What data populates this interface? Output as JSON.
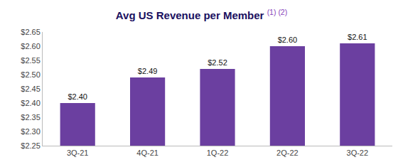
{
  "chart_data": {
    "type": "bar",
    "title": "Avg US Revenue per Member",
    "annotations": [
      "(1) (2)"
    ],
    "categories": [
      "3Q-21",
      "4Q-21",
      "1Q-22",
      "2Q-22",
      "3Q-22"
    ],
    "values": [
      2.4,
      2.49,
      2.52,
      2.6,
      2.61
    ],
    "value_labels": [
      "$2.40",
      "$2.49",
      "$2.52",
      "$2.60",
      "$2.61"
    ],
    "data_labels": true,
    "color": "#6b3fa0",
    "ylim": [
      2.25,
      2.65
    ],
    "yticks": [
      {
        "value": 2.25,
        "label": "$2.25"
      },
      {
        "value": 2.3,
        "label": "$2.30"
      },
      {
        "value": 2.35,
        "label": "$2.35"
      },
      {
        "value": 2.4,
        "label": "$2.40"
      },
      {
        "value": 2.45,
        "label": "$2.45"
      },
      {
        "value": 2.5,
        "label": "$2.50"
      },
      {
        "value": 2.55,
        "label": "$2.55"
      },
      {
        "value": 2.6,
        "label": "$2.60"
      },
      {
        "value": 2.65,
        "label": "$2.65"
      }
    ],
    "grid": false
  }
}
